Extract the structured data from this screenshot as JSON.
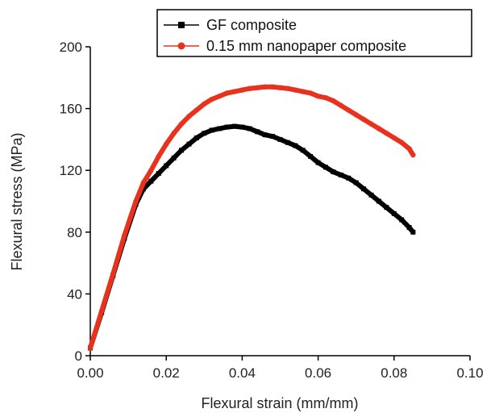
{
  "chart_data": {
    "type": "line",
    "xlabel": "Flexural strain (mm/mm)",
    "ylabel": "Flexural stress (MPa)",
    "xlim": [
      0,
      0.1
    ],
    "ylim": [
      0,
      200
    ],
    "xticks": [
      "0.00",
      "0.02",
      "0.04",
      "0.06",
      "0.08",
      "0.10"
    ],
    "yticks": [
      "0",
      "40",
      "80",
      "120",
      "160",
      "200"
    ],
    "legend_position": "top-right",
    "series": [
      {
        "name": "GF composite",
        "color": "#000000",
        "marker": "square",
        "x": [
          0.0,
          0.003,
          0.006,
          0.009,
          0.012,
          0.014,
          0.016,
          0.018,
          0.02,
          0.022,
          0.024,
          0.026,
          0.028,
          0.03,
          0.032,
          0.034,
          0.036,
          0.038,
          0.04,
          0.042,
          0.044,
          0.046,
          0.048,
          0.05,
          0.052,
          0.054,
          0.056,
          0.058,
          0.06,
          0.062,
          0.064,
          0.066,
          0.068,
          0.07,
          0.072,
          0.074,
          0.076,
          0.078,
          0.08,
          0.082,
          0.084,
          0.085
        ],
        "y": [
          5,
          28,
          52,
          76,
          98,
          108,
          113,
          118,
          123,
          128,
          133,
          137,
          141,
          144,
          146,
          147,
          148,
          148.5,
          148,
          147,
          145,
          143,
          142,
          140,
          138,
          136,
          133,
          129,
          125,
          122,
          119,
          117,
          115,
          112,
          108,
          104,
          100,
          96,
          92,
          88,
          83,
          80
        ]
      },
      {
        "name": "0.15 mm nanopaper composite",
        "color": "#e8321e",
        "marker": "circle",
        "x": [
          0.0,
          0.003,
          0.006,
          0.009,
          0.012,
          0.014,
          0.016,
          0.018,
          0.02,
          0.022,
          0.024,
          0.026,
          0.028,
          0.03,
          0.032,
          0.034,
          0.036,
          0.038,
          0.04,
          0.042,
          0.044,
          0.046,
          0.048,
          0.05,
          0.052,
          0.054,
          0.056,
          0.058,
          0.06,
          0.062,
          0.064,
          0.066,
          0.068,
          0.07,
          0.072,
          0.074,
          0.076,
          0.078,
          0.08,
          0.082,
          0.084,
          0.085
        ],
        "y": [
          5,
          29,
          53,
          78,
          100,
          112,
          120,
          129,
          137,
          144,
          150,
          155,
          159,
          163,
          166,
          168,
          170,
          171,
          172,
          173,
          173.5,
          174,
          174,
          173.5,
          173,
          172,
          171,
          170,
          168,
          167,
          165,
          162,
          159,
          156,
          153,
          150,
          147,
          144,
          141,
          138,
          134,
          130
        ]
      }
    ]
  }
}
